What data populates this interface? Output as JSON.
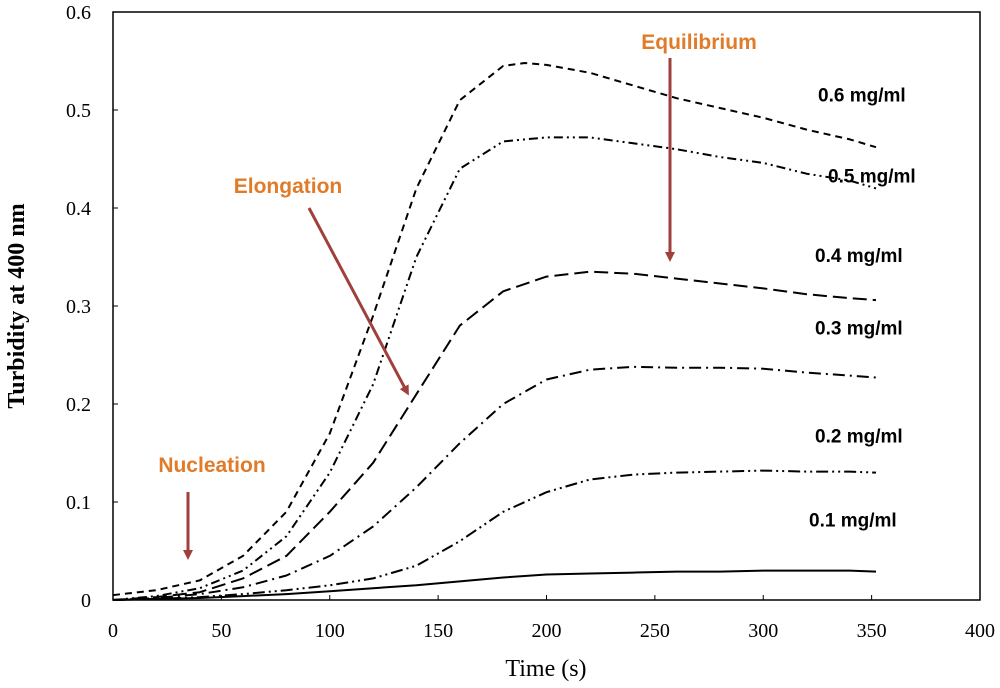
{
  "chart_data": {
    "type": "line",
    "xlabel": "Time (s)",
    "ylabel": "Turbidity at 400 nm",
    "xlim": [
      0,
      400
    ],
    "ylim": [
      0,
      0.6
    ],
    "x_ticks": [
      "0",
      "50",
      "100",
      "150",
      "200",
      "250",
      "300",
      "350",
      "400"
    ],
    "y_ticks": [
      "0",
      "0.1",
      "0.2",
      "0.3",
      "0.4",
      "0.5",
      "0.6"
    ],
    "grid": false,
    "legend": "none",
    "colors": {
      "series": "#000000",
      "annotation_text": "#e07b2a",
      "arrow": "#a0403c"
    },
    "series": [
      {
        "name": "0.6 mg/ml",
        "dash": "7,5",
        "x": [
          0,
          20,
          40,
          60,
          80,
          100,
          120,
          140,
          160,
          180,
          190,
          200,
          220,
          240,
          260,
          280,
          300,
          320,
          340,
          352
        ],
        "y": [
          0.005,
          0.01,
          0.02,
          0.045,
          0.09,
          0.17,
          0.29,
          0.42,
          0.51,
          0.545,
          0.548,
          0.546,
          0.538,
          0.525,
          0.512,
          0.502,
          0.492,
          0.48,
          0.47,
          0.462
        ]
      },
      {
        "name": "0.5 mg/ml",
        "dash": "9,4,2,4,2,4",
        "x": [
          0,
          20,
          40,
          60,
          80,
          100,
          120,
          140,
          160,
          180,
          200,
          220,
          240,
          260,
          280,
          300,
          320,
          340,
          352
        ],
        "y": [
          0.0,
          0.004,
          0.012,
          0.03,
          0.065,
          0.13,
          0.22,
          0.35,
          0.44,
          0.468,
          0.472,
          0.472,
          0.466,
          0.46,
          0.452,
          0.446,
          0.435,
          0.428,
          0.42
        ]
      },
      {
        "name": "0.4 mg/ml",
        "dash": "14,6",
        "x": [
          0,
          20,
          40,
          60,
          80,
          100,
          120,
          140,
          160,
          180,
          200,
          220,
          240,
          260,
          280,
          300,
          320,
          340,
          352
        ],
        "y": [
          0.0,
          0.003,
          0.008,
          0.022,
          0.045,
          0.09,
          0.14,
          0.21,
          0.28,
          0.315,
          0.33,
          0.335,
          0.333,
          0.328,
          0.323,
          0.318,
          0.312,
          0.308,
          0.306
        ]
      },
      {
        "name": "0.3 mg/ml",
        "dash": "12,5,2,5",
        "x": [
          0,
          20,
          40,
          60,
          80,
          100,
          120,
          140,
          160,
          180,
          200,
          220,
          240,
          260,
          280,
          300,
          320,
          340,
          352
        ],
        "y": [
          0.0,
          0.002,
          0.006,
          0.013,
          0.025,
          0.045,
          0.075,
          0.115,
          0.16,
          0.2,
          0.225,
          0.235,
          0.238,
          0.237,
          0.237,
          0.236,
          0.232,
          0.229,
          0.227
        ]
      },
      {
        "name": "0.2 mg/ml",
        "dash": "12,4,2,4,2,4",
        "x": [
          0,
          20,
          40,
          60,
          80,
          100,
          120,
          140,
          160,
          180,
          200,
          220,
          240,
          260,
          280,
          300,
          320,
          340,
          352
        ],
        "y": [
          0.0,
          0.001,
          0.003,
          0.006,
          0.01,
          0.015,
          0.022,
          0.035,
          0.06,
          0.09,
          0.11,
          0.123,
          0.128,
          0.13,
          0.131,
          0.132,
          0.131,
          0.131,
          0.13
        ]
      },
      {
        "name": "0.1 mg/ml",
        "dash": "",
        "x": [
          0,
          20,
          40,
          60,
          80,
          100,
          120,
          140,
          160,
          180,
          200,
          220,
          240,
          260,
          280,
          300,
          320,
          340,
          352
        ],
        "y": [
          0.0,
          0.001,
          0.002,
          0.004,
          0.006,
          0.009,
          0.012,
          0.015,
          0.019,
          0.023,
          0.026,
          0.027,
          0.028,
          0.029,
          0.029,
          0.03,
          0.03,
          0.03,
          0.029
        ]
      }
    ],
    "annotations": [
      {
        "text": "Nucleation"
      },
      {
        "text": "Elongation"
      },
      {
        "text": "Equilibrium"
      }
    ]
  }
}
